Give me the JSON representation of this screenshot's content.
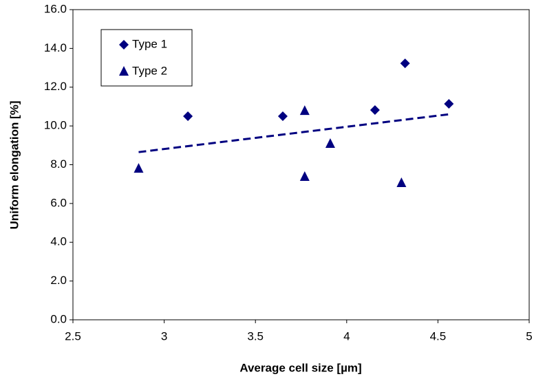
{
  "chart_data": {
    "type": "scatter",
    "xlabel": "Average cell size [µm]",
    "ylabel": "Uniform elongation [%]",
    "xlim": [
      2.5,
      5
    ],
    "xticks": [
      2.5,
      3,
      3.5,
      4,
      4.5,
      5
    ],
    "ylim": [
      0,
      16
    ],
    "yticks": [
      {
        "value": 0,
        "label": "0.0"
      },
      {
        "value": 2,
        "label": "2.0"
      },
      {
        "value": 4,
        "label": "4.0"
      },
      {
        "value": 6,
        "label": "6.0"
      },
      {
        "value": 8,
        "label": "8.0"
      },
      {
        "value": 10,
        "label": "10.0"
      },
      {
        "value": 12,
        "label": "12.0"
      },
      {
        "value": 14,
        "label": "14.0"
      },
      {
        "value": 16,
        "label": "16.0"
      }
    ],
    "grid": false,
    "series": [
      {
        "name": "Type 1",
        "color": "#000080",
        "marker": "diamond",
        "x": [
          3.13,
          3.65,
          4.155,
          4.32,
          4.56
        ],
        "values": [
          10.5,
          10.5,
          10.82,
          13.23,
          11.14
        ]
      },
      {
        "name": "Type 2",
        "color": "#000080",
        "marker": "triangle",
        "x": [
          2.86,
          3.77,
          3.77,
          3.91,
          4.3
        ],
        "values": [
          7.8,
          10.78,
          7.38,
          9.08,
          7.06
        ]
      }
    ],
    "trendline": {
      "color": "#000080",
      "x": [
        2.86,
        4.56
      ],
      "values": [
        8.65,
        10.6
      ]
    }
  }
}
